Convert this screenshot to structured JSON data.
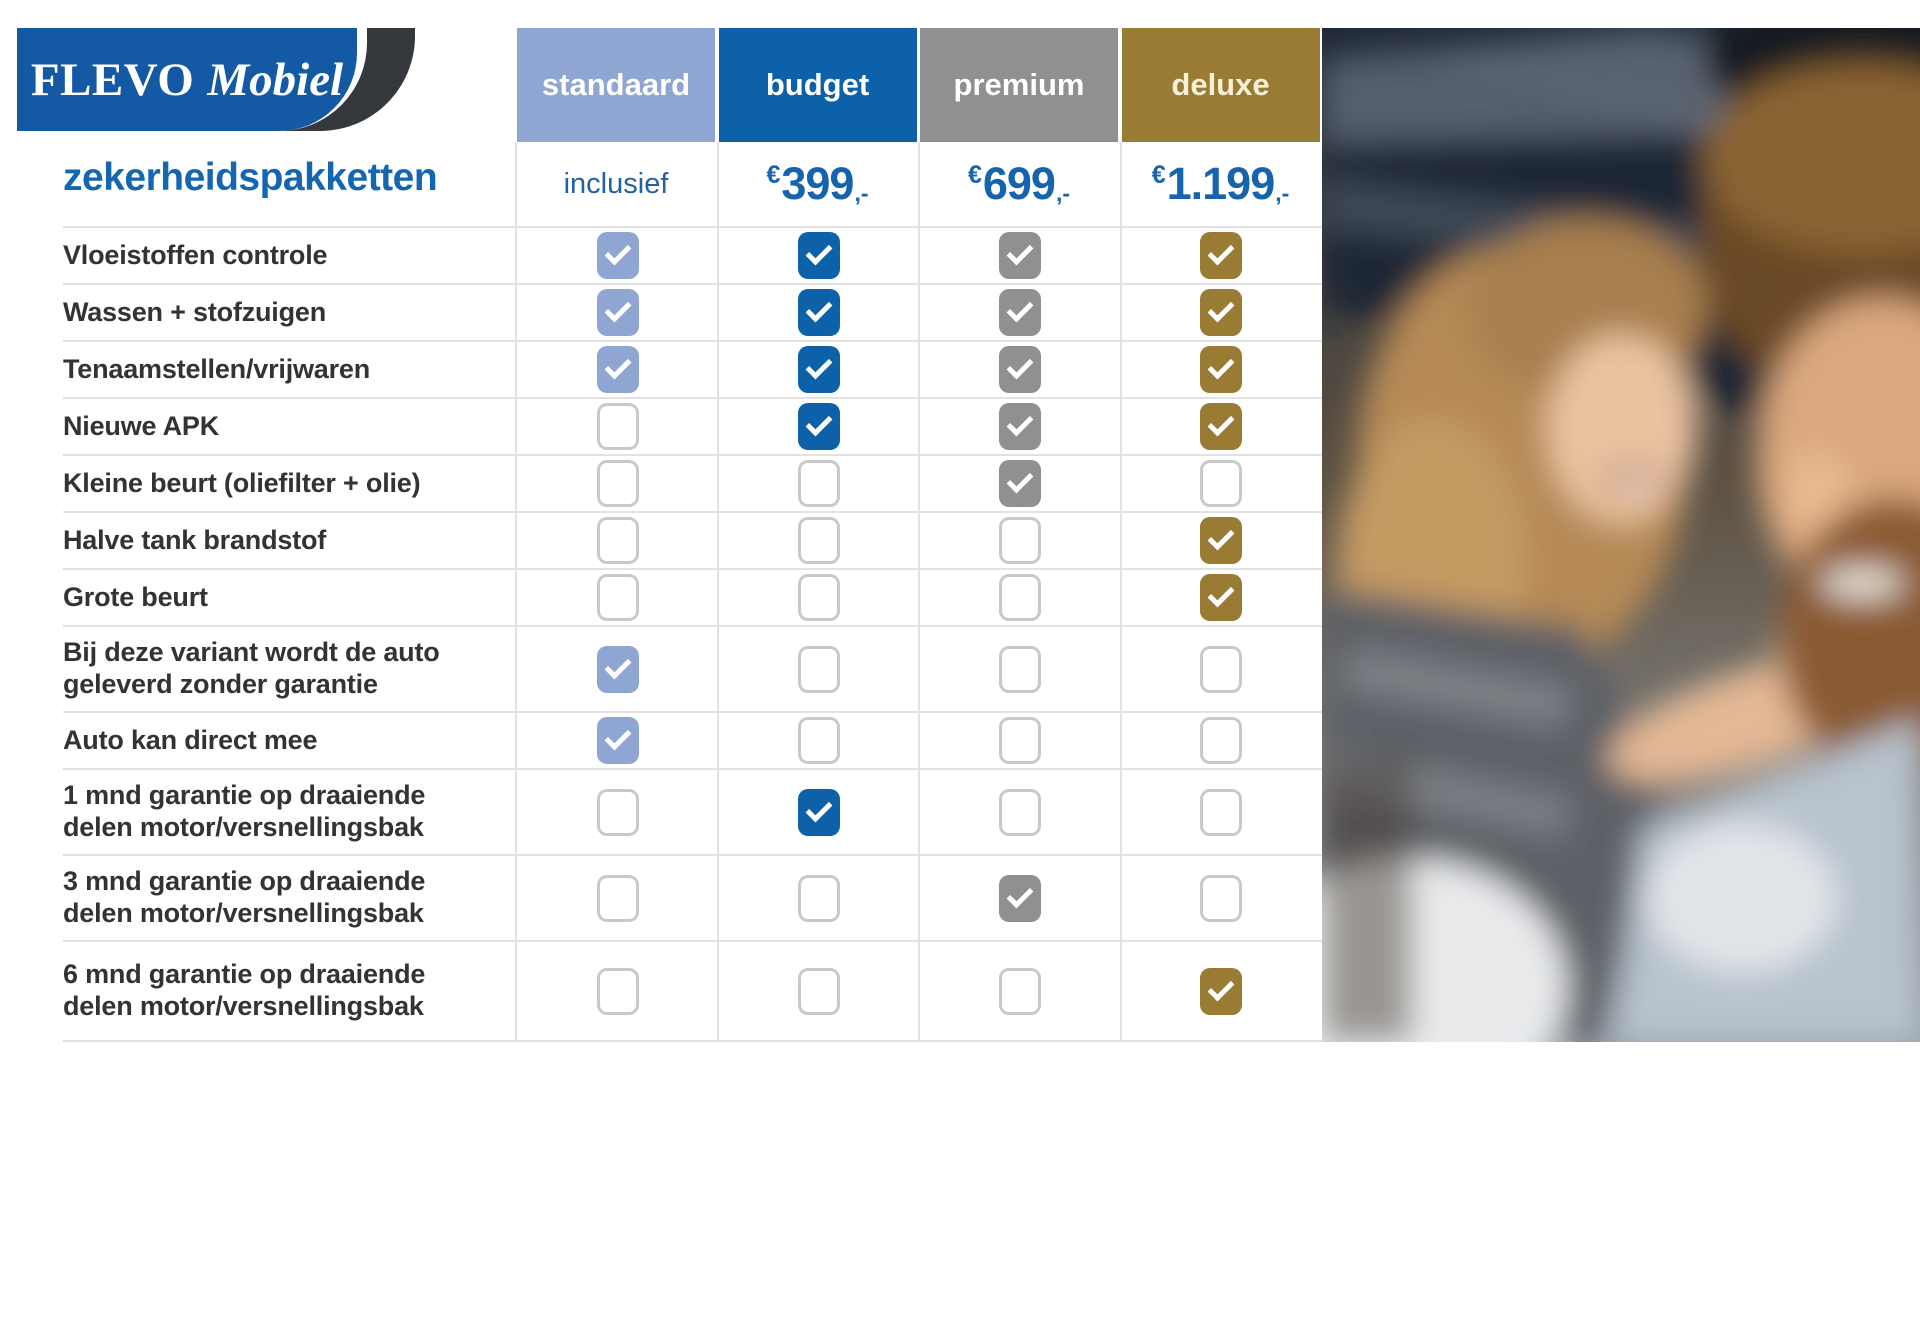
{
  "logo": {
    "brand": "FLEVO",
    "brand_accent": "Mobiel"
  },
  "heading": "zekerheidspakketten",
  "table": {
    "columns": [
      {
        "label": "standaard",
        "color": "#8fa5d2",
        "label_color": "#ffffff",
        "price_text": "inclusief"
      },
      {
        "label": "budget",
        "color": "#0d61a9",
        "label_color": "#ffffff",
        "price_euro": "€",
        "price_amount": "399",
        "price_suffix": ",-"
      },
      {
        "label": "premium",
        "color": "#909092",
        "label_color": "#ffffff",
        "price_euro": "€",
        "price_amount": "699",
        "price_suffix": ",-"
      },
      {
        "label": "deluxe",
        "color": "#9a7b33",
        "label_color": "#f6f0da",
        "price_euro": "€",
        "price_amount": "1.199",
        "price_suffix": ",-"
      }
    ],
    "rows": [
      {
        "label": "Vloeistoffen controle",
        "checks": [
          true,
          true,
          true,
          true
        ],
        "tall": false
      },
      {
        "label": "Wassen + stofzuigen",
        "checks": [
          true,
          true,
          true,
          true
        ],
        "tall": false
      },
      {
        "label": "Tenaamstellen/vrijwaren",
        "checks": [
          true,
          true,
          true,
          true
        ],
        "tall": false
      },
      {
        "label": "Nieuwe APK",
        "checks": [
          false,
          true,
          true,
          true
        ],
        "tall": false
      },
      {
        "label": "Kleine beurt (oliefilter + olie)",
        "checks": [
          false,
          false,
          true,
          false
        ],
        "tall": false
      },
      {
        "label": "Halve tank brandstof",
        "checks": [
          false,
          false,
          false,
          true
        ],
        "tall": false
      },
      {
        "label": "Grote beurt",
        "checks": [
          false,
          false,
          false,
          true
        ],
        "tall": false
      },
      {
        "label": "Bij deze variant wordt de auto geleverd zonder garantie",
        "checks": [
          true,
          false,
          false,
          false
        ],
        "tall": true
      },
      {
        "label": "Auto kan direct mee",
        "checks": [
          true,
          false,
          false,
          false
        ],
        "tall": false
      },
      {
        "label": "1 mnd garantie op draaiende delen motor/versnellingsbak",
        "checks": [
          false,
          true,
          false,
          false
        ],
        "tall": true
      },
      {
        "label": "3 mnd garantie op draaiende delen motor/versnellingsbak",
        "checks": [
          false,
          false,
          true,
          false
        ],
        "tall": true
      },
      {
        "label": "6 mnd garantie op draaiende delen motor/versnellingsbak",
        "checks": [
          false,
          false,
          false,
          true
        ],
        "tall": true
      }
    ]
  },
  "photo": {
    "name": "couple-smiling-in-car"
  }
}
